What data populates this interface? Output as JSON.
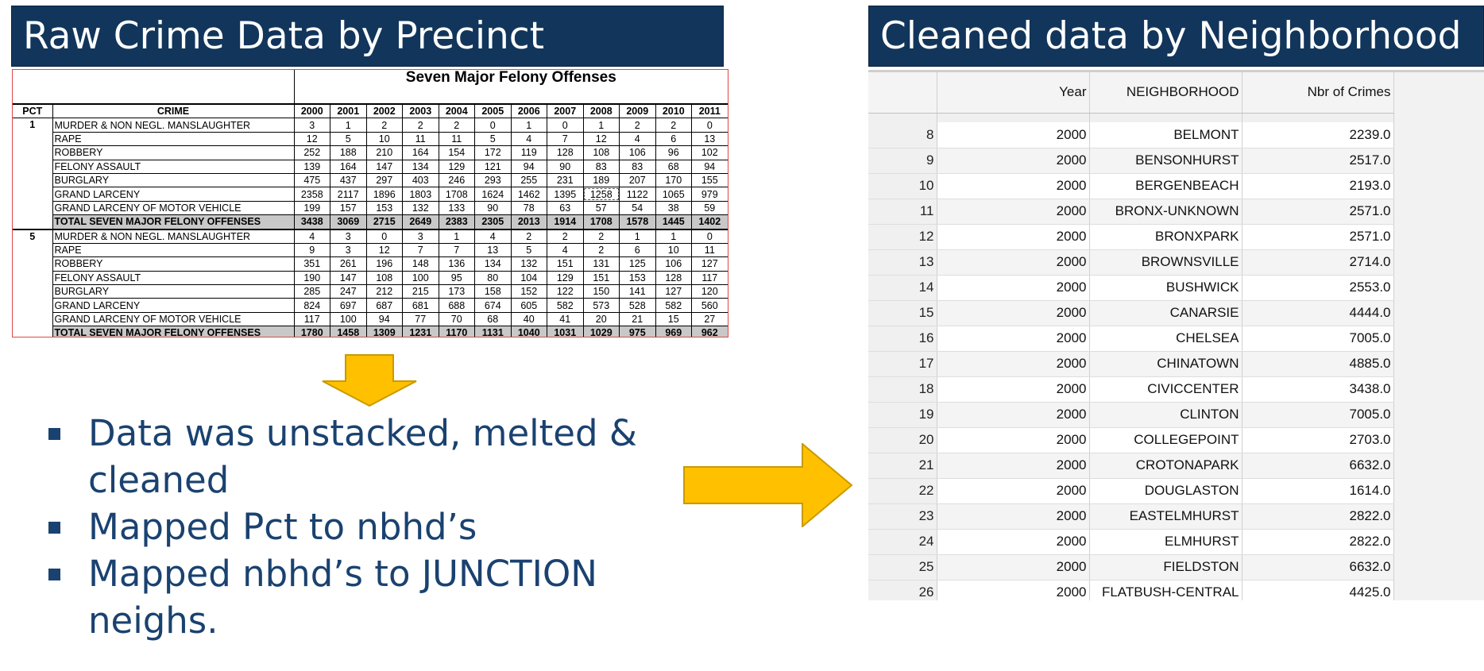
{
  "left_title": "Raw Crime Data by Precinct",
  "right_title": "Cleaned data by Neighborhood",
  "raw": {
    "title": "Seven Major Felony Offenses",
    "headers": [
      "PCT",
      "CRIME",
      "2000",
      "2001",
      "2002",
      "2003",
      "2004",
      "2005",
      "2006",
      "2007",
      "2008",
      "2009",
      "2010",
      "2011"
    ],
    "groups": [
      {
        "pct": "1",
        "rows": [
          {
            "crime": "MURDER & NON NEGL. MANSLAUGHTER",
            "values": [
              "3",
              "1",
              "2",
              "2",
              "2",
              "0",
              "1",
              "0",
              "1",
              "2",
              "2",
              "0"
            ]
          },
          {
            "crime": "RAPE",
            "values": [
              "12",
              "5",
              "10",
              "11",
              "11",
              "5",
              "4",
              "7",
              "12",
              "4",
              "6",
              "13"
            ]
          },
          {
            "crime": "ROBBERY",
            "values": [
              "252",
              "188",
              "210",
              "164",
              "154",
              "172",
              "119",
              "128",
              "108",
              "106",
              "96",
              "102"
            ]
          },
          {
            "crime": "FELONY ASSAULT",
            "values": [
              "139",
              "164",
              "147",
              "134",
              "129",
              "121",
              "94",
              "90",
              "83",
              "83",
              "68",
              "94"
            ]
          },
          {
            "crime": "BURGLARY",
            "values": [
              "475",
              "437",
              "297",
              "403",
              "246",
              "293",
              "255",
              "231",
              "189",
              "207",
              "170",
              "155"
            ]
          },
          {
            "crime": "GRAND LARCENY",
            "values": [
              "2358",
              "2117",
              "1896",
              "1803",
              "1708",
              "1624",
              "1462",
              "1395",
              "1258",
              "1122",
              "1065",
              "979"
            ]
          },
          {
            "crime": "GRAND LARCENY OF MOTOR VEHICLE",
            "values": [
              "199",
              "157",
              "153",
              "132",
              "133",
              "90",
              "78",
              "63",
              "57",
              "54",
              "38",
              "59"
            ]
          }
        ],
        "total": {
          "crime": "TOTAL SEVEN MAJOR FELONY OFFENSES",
          "values": [
            "3438",
            "3069",
            "2715",
            "2649",
            "2383",
            "2305",
            "2013",
            "1914",
            "1708",
            "1578",
            "1445",
            "1402"
          ]
        }
      },
      {
        "pct": "5",
        "rows": [
          {
            "crime": "MURDER & NON NEGL. MANSLAUGHTER",
            "values": [
              "4",
              "3",
              "0",
              "3",
              "1",
              "4",
              "2",
              "2",
              "2",
              "1",
              "1",
              "0"
            ]
          },
          {
            "crime": "RAPE",
            "values": [
              "9",
              "3",
              "12",
              "7",
              "7",
              "13",
              "5",
              "4",
              "2",
              "6",
              "10",
              "11"
            ]
          },
          {
            "crime": "ROBBERY",
            "values": [
              "351",
              "261",
              "196",
              "148",
              "136",
              "134",
              "132",
              "151",
              "131",
              "125",
              "106",
              "127"
            ]
          },
          {
            "crime": "FELONY ASSAULT",
            "values": [
              "190",
              "147",
              "108",
              "100",
              "95",
              "80",
              "104",
              "129",
              "151",
              "153",
              "128",
              "117"
            ]
          },
          {
            "crime": "BURGLARY",
            "values": [
              "285",
              "247",
              "212",
              "215",
              "173",
              "158",
              "152",
              "122",
              "150",
              "141",
              "127",
              "120"
            ]
          },
          {
            "crime": "GRAND LARCENY",
            "values": [
              "824",
              "697",
              "687",
              "681",
              "688",
              "674",
              "605",
              "582",
              "573",
              "528",
              "582",
              "560"
            ]
          },
          {
            "crime": "GRAND LARCENY OF MOTOR VEHICLE",
            "values": [
              "117",
              "100",
              "94",
              "77",
              "70",
              "68",
              "40",
              "41",
              "20",
              "21",
              "15",
              "27"
            ]
          }
        ],
        "total": {
          "crime": "TOTAL SEVEN MAJOR FELONY OFFENSES",
          "values": [
            "1780",
            "1458",
            "1309",
            "1231",
            "1170",
            "1131",
            "1040",
            "1031",
            "1029",
            "975",
            "969",
            "962"
          ]
        }
      }
    ]
  },
  "bullets": [
    "Data was unstacked, melted & cleaned",
    "Mapped Pct to nbhd’s",
    "Mapped nbhd’s to JUNCTION neighs."
  ],
  "cleaned": {
    "columns": [
      "",
      "Year",
      "NEIGHBORHOOD",
      "Nbr of Crimes"
    ],
    "rows": [
      [
        "8",
        "2000",
        "BELMONT",
        "2239.0"
      ],
      [
        "9",
        "2000",
        "BENSONHURST",
        "2517.0"
      ],
      [
        "10",
        "2000",
        "BERGENBEACH",
        "2193.0"
      ],
      [
        "11",
        "2000",
        "BRONX-UNKNOWN",
        "2571.0"
      ],
      [
        "12",
        "2000",
        "BRONXPARK",
        "2571.0"
      ],
      [
        "13",
        "2000",
        "BROWNSVILLE",
        "2714.0"
      ],
      [
        "14",
        "2000",
        "BUSHWICK",
        "2553.0"
      ],
      [
        "15",
        "2000",
        "CANARSIE",
        "4444.0"
      ],
      [
        "16",
        "2000",
        "CHELSEA",
        "7005.0"
      ],
      [
        "17",
        "2000",
        "CHINATOWN",
        "4885.0"
      ],
      [
        "18",
        "2000",
        "CIVICCENTER",
        "3438.0"
      ],
      [
        "19",
        "2000",
        "CLINTON",
        "7005.0"
      ],
      [
        "20",
        "2000",
        "COLLEGEPOINT",
        "2703.0"
      ],
      [
        "21",
        "2000",
        "CROTONAPARK",
        "6632.0"
      ],
      [
        "22",
        "2000",
        "DOUGLASTON",
        "1614.0"
      ],
      [
        "23",
        "2000",
        "EASTELMHURST",
        "2822.0"
      ],
      [
        "24",
        "2000",
        "ELMHURST",
        "2822.0"
      ],
      [
        "25",
        "2000",
        "FIELDSTON",
        "6632.0"
      ],
      [
        "26",
        "2000",
        "FLATBUSH-CENTRAL",
        "4425.0"
      ]
    ]
  },
  "colors": {
    "banner": "#12355b",
    "bullet_text": "#1a4270",
    "arrow_fill": "#ffc000",
    "arrow_stroke": "#c99a00"
  }
}
